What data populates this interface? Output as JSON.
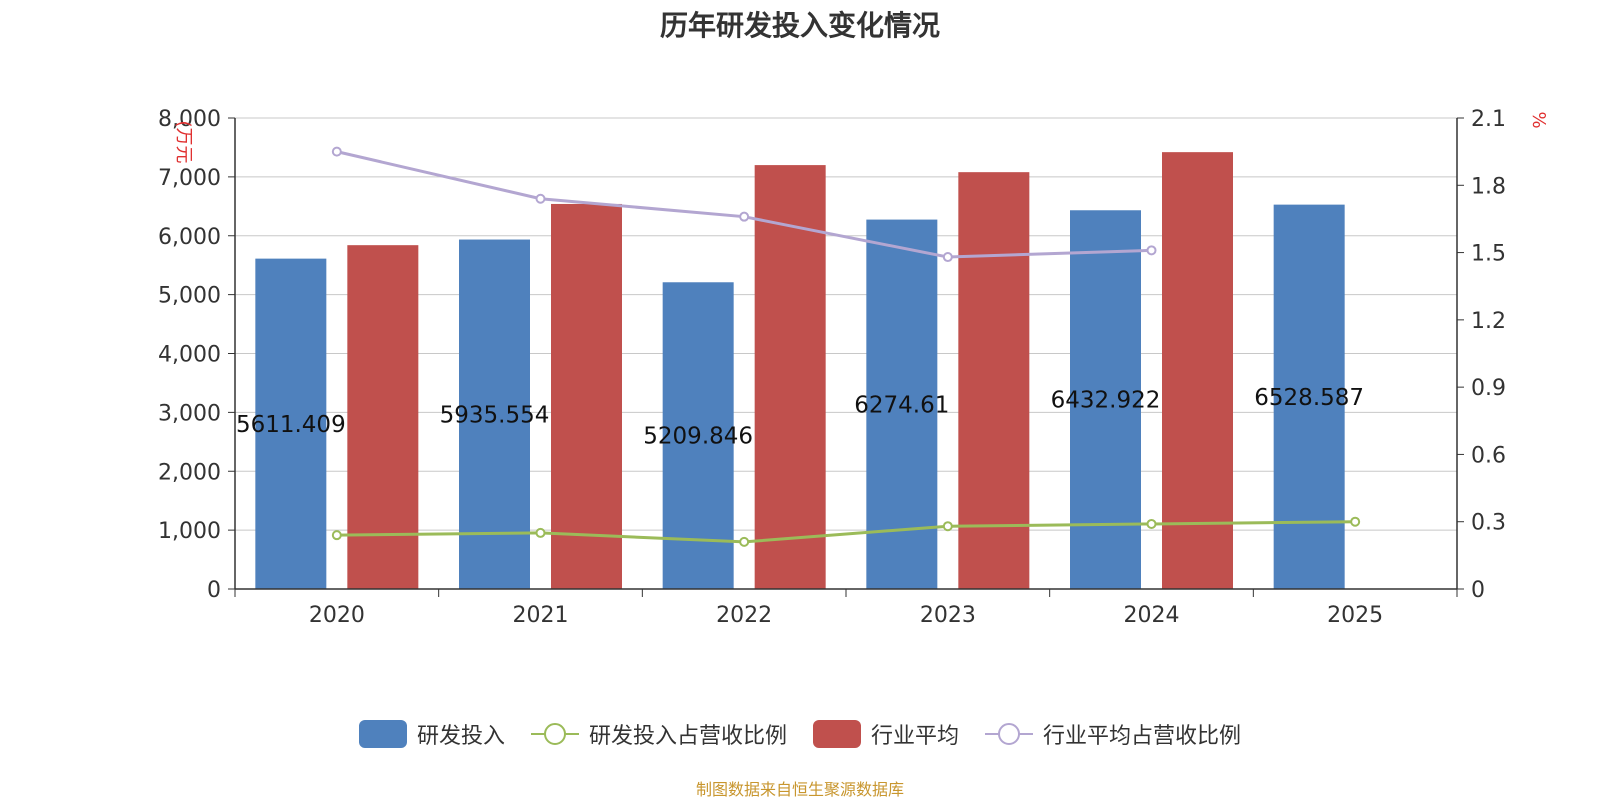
{
  "chart_data": {
    "type": "bar",
    "title": "历年研发投入变化情况",
    "categories": [
      "2020",
      "2021",
      "2022",
      "2023",
      "2024",
      "2025"
    ],
    "y_left": {
      "unit_label": "(万元",
      "ylim": [
        0,
        8000
      ],
      "ticks": [
        "0",
        "1,000",
        "2,000",
        "3,000",
        "4,000",
        "5,000",
        "6,000",
        "7,000",
        "8,000"
      ]
    },
    "y_right": {
      "unit_label": "%",
      "ylim": [
        0,
        2.1
      ],
      "ticks": [
        "0",
        "0.3",
        "0.6",
        "0.9",
        "1.2",
        "1.5",
        "1.8",
        "2.1"
      ]
    },
    "series": [
      {
        "name": "研发投入",
        "type": "bar",
        "axis": "left",
        "color": "#4f81bd",
        "values": [
          5611.409,
          5935.554,
          5209.846,
          6274.61,
          6432.922,
          6528.587
        ],
        "labels": [
          "5611.409",
          "5935.554",
          "5209.846",
          "6274.61",
          "6432.922",
          "6528.587"
        ]
      },
      {
        "name": "行业平均",
        "type": "bar",
        "axis": "left",
        "color": "#c0504d",
        "values": [
          5840,
          6540,
          7200,
          7080,
          7420,
          null
        ]
      },
      {
        "name": "研发投入占营收比例",
        "type": "line",
        "axis": "right",
        "color": "#9bbb59",
        "values": [
          0.24,
          0.25,
          0.21,
          0.28,
          0.29,
          0.3
        ]
      },
      {
        "name": "行业平均占营收比例",
        "type": "line",
        "axis": "right",
        "color": "#b3a6d1",
        "values": [
          1.95,
          1.74,
          1.66,
          1.48,
          1.51,
          null
        ]
      }
    ],
    "legend": "bottom",
    "grid": true
  },
  "source_note": "制图数据来自恒生聚源数据库"
}
